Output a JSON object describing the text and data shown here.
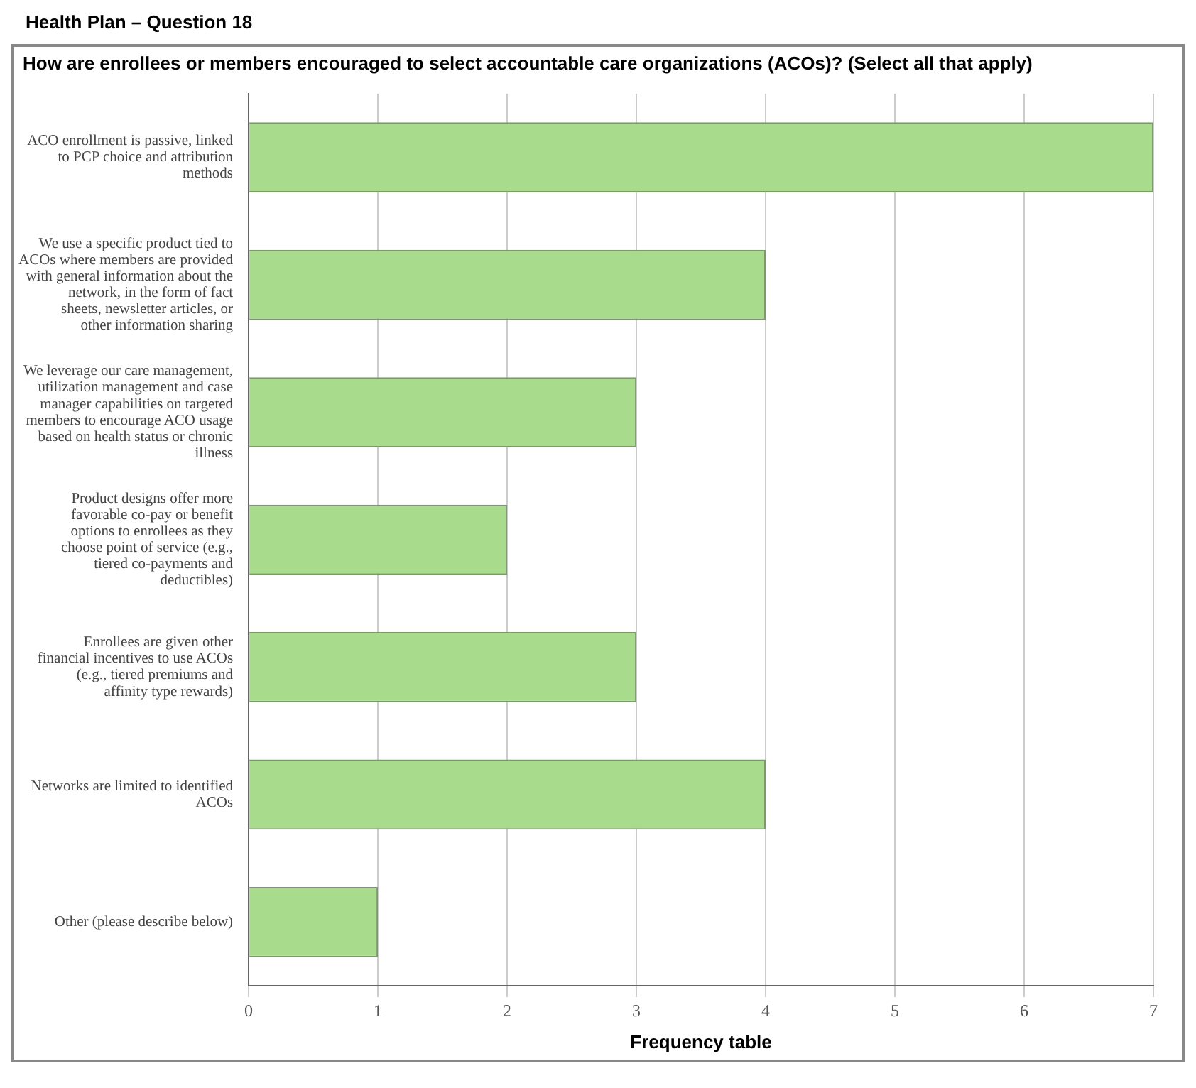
{
  "chart_data": {
    "type": "bar",
    "orientation": "horizontal",
    "title": "Health Plan – Question 18",
    "subtitle": "How are enrollees or members encouraged to select accountable care organizations (ACOs)? (Select all that apply)",
    "xlabel": "Frequency table",
    "categories": [
      "ACO enrollment is passive, linked to PCP choice and attribution methods",
      "We use a specific product tied to ACOs where members are provided with general information about the network, in the form of fact sheets, newsletter articles, or other information sharing",
      "We leverage our care management, utilization management and case manager capabilities on targeted members to encourage ACO usage based on health status or chronic illness",
      "Product designs offer more favorable co-pay or benefit options to enrollees as they choose point of service (e.g., tiered co-payments and deductibles)",
      "Enrollees are given other financial incentives to use ACOs (e.g., tiered premiums and affinity type rewards)",
      "Networks are limited to identified ACOs",
      "Other (please describe below)"
    ],
    "values": [
      7,
      4,
      3,
      2,
      3,
      4,
      1
    ],
    "color": "#a8dc8c",
    "xlim": [
      0,
      7
    ],
    "xticks": [
      0,
      1,
      2,
      3,
      4,
      5,
      6,
      7
    ],
    "grid": "x"
  }
}
